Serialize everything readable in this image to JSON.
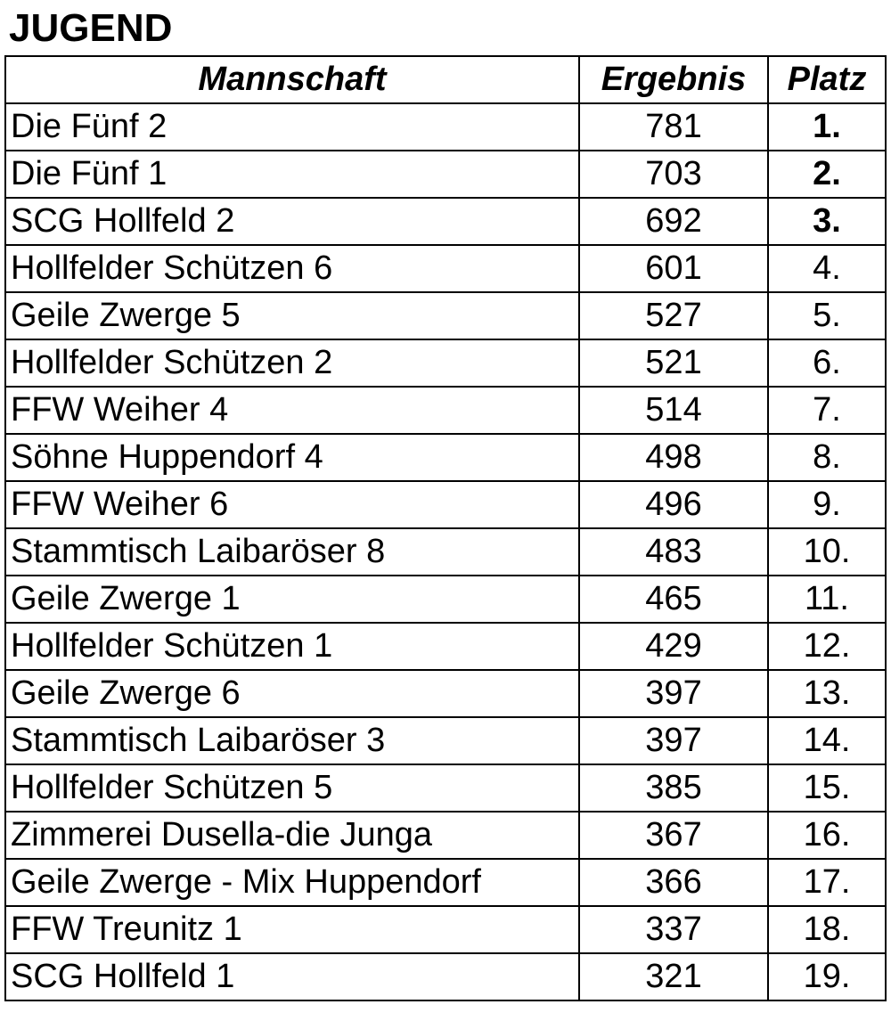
{
  "title": "JUGEND",
  "table": {
    "headers": {
      "team": "Mannschaft",
      "score": "Ergebnis",
      "place": "Platz"
    },
    "rows": [
      {
        "team": "Die Fünf 2",
        "score": "781",
        "place": "1.",
        "podium": true
      },
      {
        "team": "Die Fünf 1",
        "score": "703",
        "place": "2.",
        "podium": true
      },
      {
        "team": "SCG Hollfeld 2",
        "score": "692",
        "place": "3.",
        "podium": true
      },
      {
        "team": "Hollfelder Schützen 6",
        "score": "601",
        "place": "4.",
        "podium": false
      },
      {
        "team": "Geile Zwerge 5",
        "score": "527",
        "place": "5.",
        "podium": false
      },
      {
        "team": "Hollfelder Schützen 2",
        "score": "521",
        "place": "6.",
        "podium": false
      },
      {
        "team": "FFW Weiher 4",
        "score": "514",
        "place": "7.",
        "podium": false
      },
      {
        "team": "Söhne Huppendorf 4",
        "score": "498",
        "place": "8.",
        "podium": false
      },
      {
        "team": "FFW Weiher 6",
        "score": "496",
        "place": "9.",
        "podium": false
      },
      {
        "team": "Stammtisch Laibaröser 8",
        "score": "483",
        "place": "10.",
        "podium": false
      },
      {
        "team": "Geile Zwerge 1",
        "score": "465",
        "place": "11.",
        "podium": false
      },
      {
        "team": "Hollfelder Schützen 1",
        "score": "429",
        "place": "12.",
        "podium": false
      },
      {
        "team": "Geile Zwerge 6",
        "score": "397",
        "place": "13.",
        "podium": false
      },
      {
        "team": "Stammtisch Laibaröser 3",
        "score": "397",
        "place": "14.",
        "podium": false
      },
      {
        "team": "Hollfelder Schützen 5",
        "score": "385",
        "place": "15.",
        "podium": false
      },
      {
        "team": "Zimmerei Dusella-die Junga",
        "score": "367",
        "place": "16.",
        "podium": false
      },
      {
        "team": "Geile Zwerge -  Mix Huppendorf",
        "score": "366",
        "place": "17.",
        "podium": false
      },
      {
        "team": "FFW Treunitz 1",
        "score": "337",
        "place": "18.",
        "podium": false
      },
      {
        "team": "SCG Hollfeld 1",
        "score": "321",
        "place": "19.",
        "podium": false
      }
    ]
  }
}
